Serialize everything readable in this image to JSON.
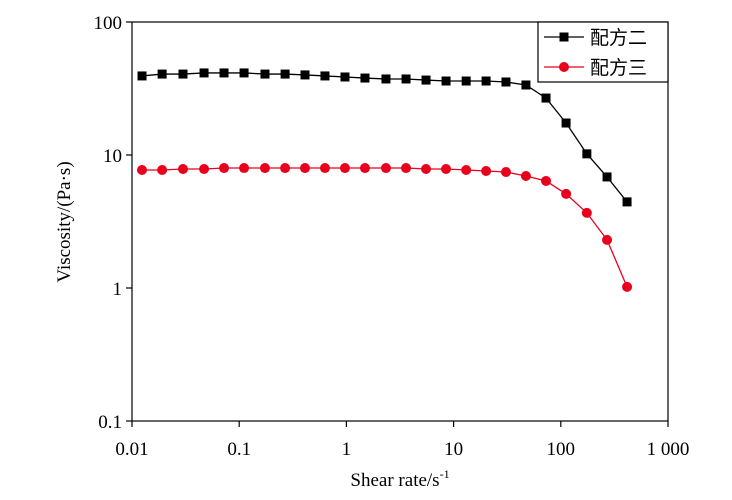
{
  "chart_data": {
    "type": "line",
    "x_label": "Shear rate/s",
    "x_label_superscript": "-1",
    "y_label": "Viscosity/(Pa·s)",
    "x": [
      0.0124,
      0.0191,
      0.0299,
      0.047,
      0.0722,
      0.111,
      0.174,
      0.268,
      0.411,
      0.631,
      0.97,
      1.49,
      2.34,
      3.6,
      5.53,
      8.5,
      13.1,
      20.1,
      30.8,
      47.3,
      72.8,
      112,
      175,
      270,
      415
    ],
    "series": [
      {
        "name": "配方二",
        "color": "#000000",
        "marker": "square",
        "values": [
          39.3,
          40.6,
          40.6,
          41.4,
          41.4,
          41.4,
          40.6,
          40.6,
          40,
          39.3,
          38.6,
          37.9,
          37.3,
          37.3,
          36.6,
          36,
          36,
          36,
          35.4,
          33.6,
          26.8,
          17.4,
          10.2,
          6.84,
          4.44
        ]
      },
      {
        "name": "配方三",
        "color": "#e8001c",
        "marker": "circle",
        "values": [
          7.71,
          7.71,
          7.85,
          7.85,
          7.98,
          7.98,
          7.98,
          7.98,
          7.98,
          7.98,
          7.98,
          7.98,
          7.98,
          7.98,
          7.85,
          7.85,
          7.71,
          7.58,
          7.45,
          6.95,
          6.38,
          5.1,
          3.67,
          2.3,
          1.02
        ]
      }
    ],
    "xlim": [
      0.01,
      1000
    ],
    "ylim": [
      0.1,
      100
    ],
    "xticks": [
      0.01,
      0.1,
      1,
      10,
      100,
      {
        "value": 1000,
        "label": "1 000"
      }
    ],
    "yticks": [
      0.1,
      1,
      10,
      100
    ],
    "xscale": "log",
    "yscale": "log",
    "legend": "upper right"
  }
}
